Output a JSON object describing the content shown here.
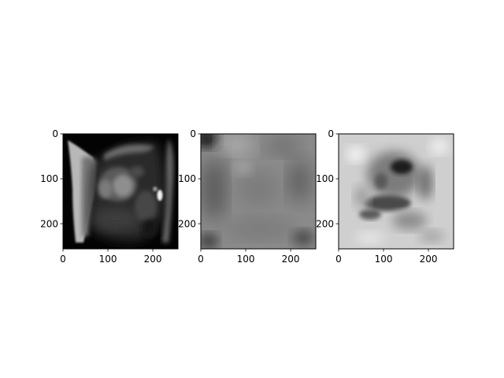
{
  "chart_data": [
    {
      "type": "heatmap",
      "colormap": "gray",
      "title": "",
      "xlabel": "",
      "ylabel": "",
      "xlim": [
        0,
        256
      ],
      "ylim": [
        256,
        0
      ],
      "xticks": [
        0,
        100,
        200
      ],
      "yticks": [
        0,
        100,
        200
      ],
      "xtick_labels": [
        "0",
        "100",
        "200"
      ],
      "ytick_labels": [
        "0",
        "100",
        "200"
      ],
      "image": "cardiac MRI slice"
    },
    {
      "type": "heatmap",
      "colormap": "gray",
      "title": "",
      "xlabel": "",
      "ylabel": "",
      "xlim": [
        0,
        256
      ],
      "ylim": [
        256,
        0
      ],
      "xticks": [
        0,
        100,
        200
      ],
      "yticks": [
        0,
        100,
        200
      ],
      "xtick_labels": [
        "0",
        "100",
        "200"
      ],
      "ytick_labels": [
        "0",
        "100",
        "200"
      ],
      "image": "smooth gray feature map"
    },
    {
      "type": "heatmap",
      "colormap": "gray",
      "title": "",
      "xlabel": "",
      "ylabel": "",
      "xlim": [
        0,
        256
      ],
      "ylim": [
        256,
        0
      ],
      "xticks": [
        0,
        100,
        200
      ],
      "yticks": [
        0,
        100,
        200
      ],
      "xtick_labels": [
        "0",
        "100",
        "200"
      ],
      "ytick_labels": [
        "0",
        "100",
        "200"
      ],
      "image": "contrast gray feature map"
    }
  ]
}
